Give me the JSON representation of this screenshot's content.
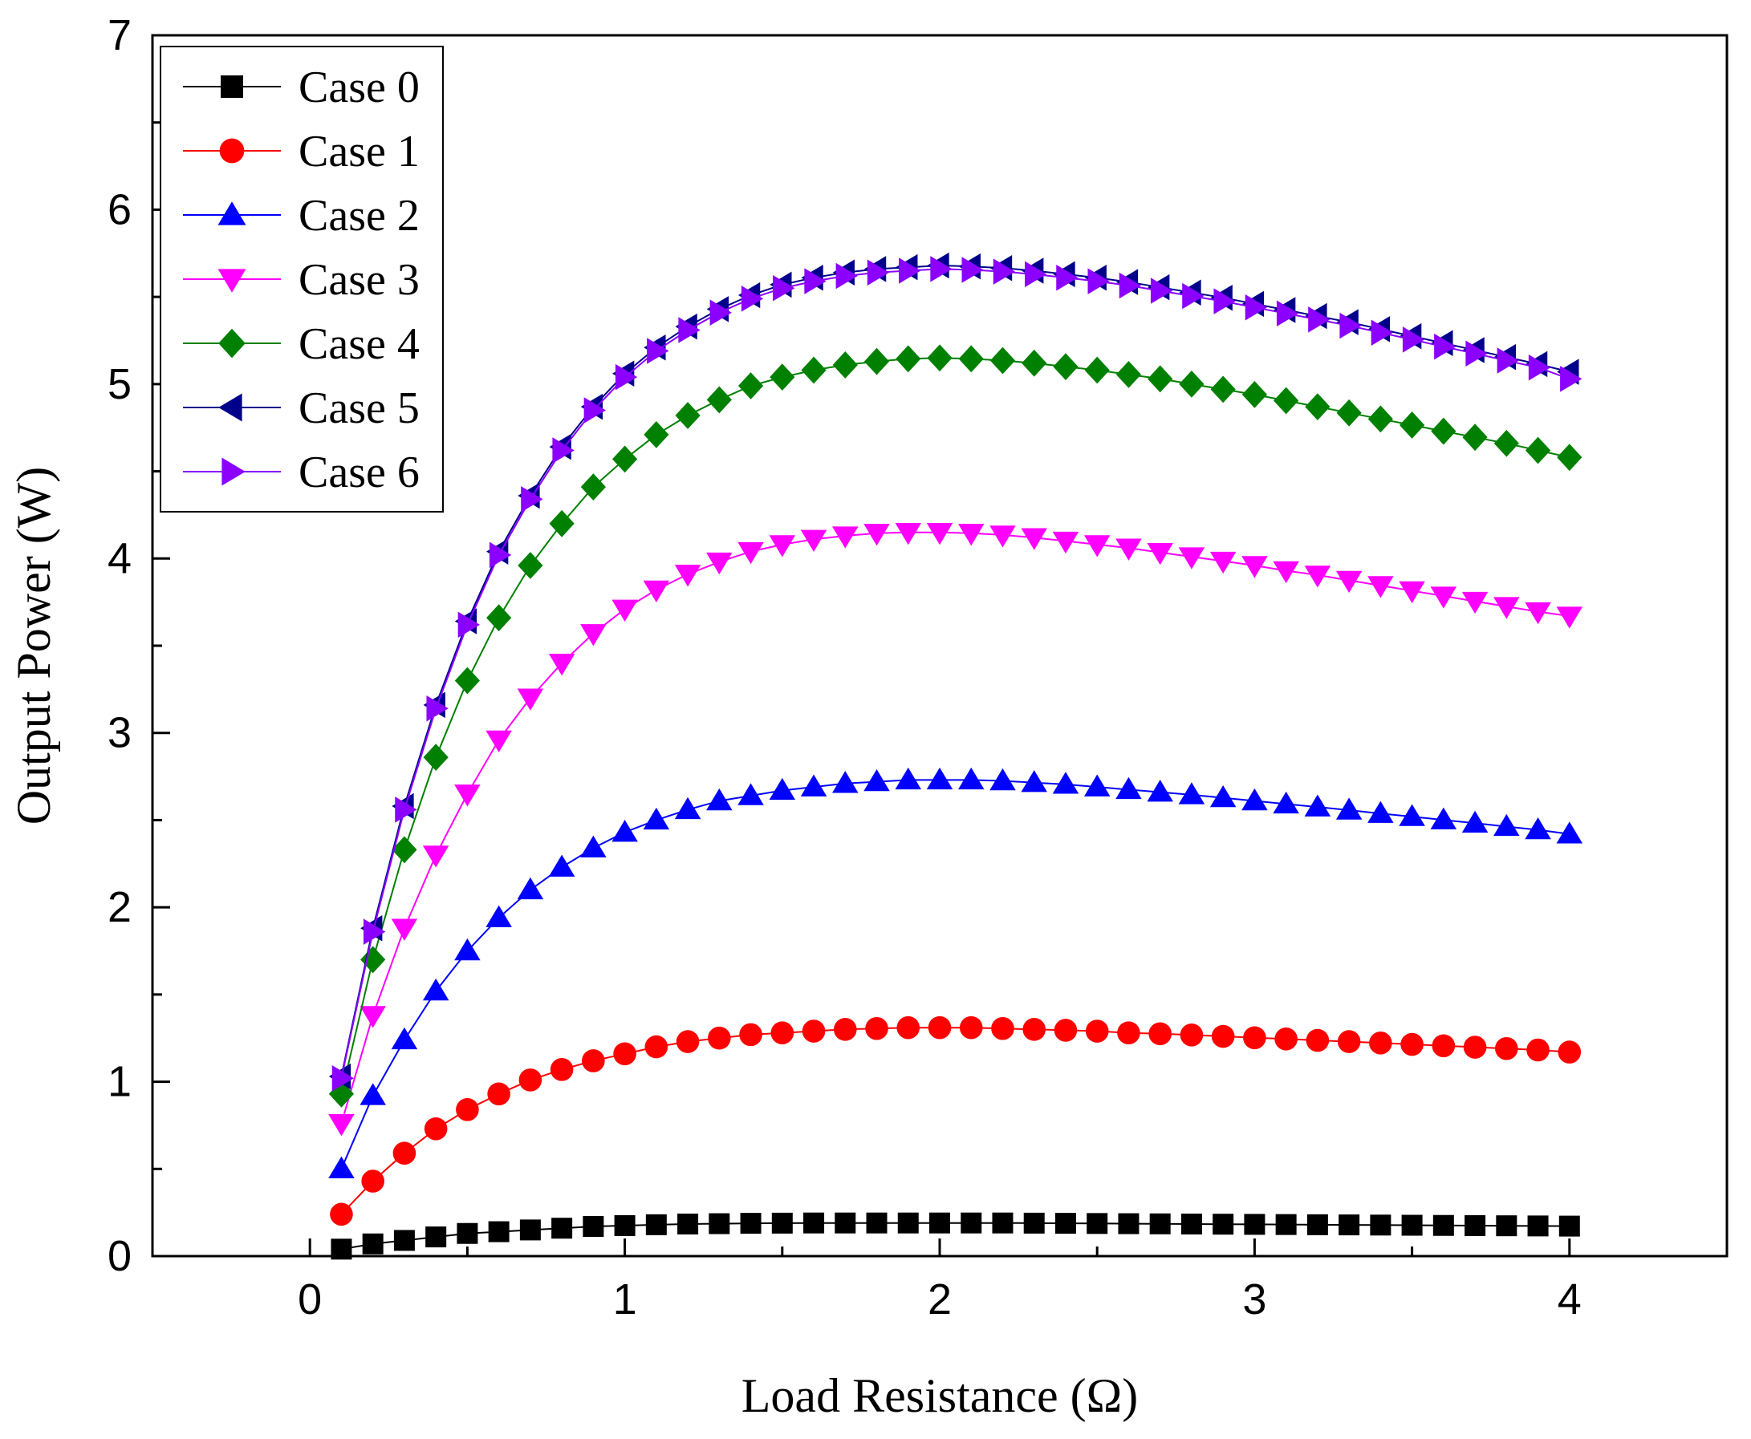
{
  "chart_data": {
    "type": "line",
    "title": "",
    "xlabel": "Load Resistance (Ω)",
    "ylabel": "Output Power (W)",
    "xlim": [
      -0.5,
      4.5
    ],
    "ylim": [
      0,
      7
    ],
    "xticks": [
      0,
      1,
      2,
      3,
      4
    ],
    "yticks": [
      0,
      1,
      2,
      3,
      4,
      5,
      6,
      7
    ],
    "legend_position": "top-left",
    "x": [
      0.1,
      0.2,
      0.3,
      0.4,
      0.5,
      0.6,
      0.7,
      0.8,
      0.9,
      1.0,
      1.1,
      1.2,
      1.3,
      1.4,
      1.5,
      1.6,
      1.7,
      1.8,
      1.9,
      2.0,
      2.1,
      2.2,
      2.3,
      2.4,
      2.5,
      2.6,
      2.7,
      2.8,
      2.9,
      3.0,
      3.1,
      3.2,
      3.3,
      3.4,
      3.5,
      3.6,
      3.7,
      3.8,
      3.9,
      4.0
    ],
    "series": [
      {
        "name": "Case 0",
        "color": "#000000",
        "marker": "square",
        "values": [
          0.04,
          0.07,
          0.09,
          0.11,
          0.13,
          0.14,
          0.15,
          0.16,
          0.17,
          0.175,
          0.18,
          0.184,
          0.186,
          0.188,
          0.189,
          0.19,
          0.19,
          0.19,
          0.19,
          0.19,
          0.19,
          0.19,
          0.189,
          0.188,
          0.187,
          0.186,
          0.185,
          0.184,
          0.183,
          0.182,
          0.181,
          0.18,
          0.179,
          0.178,
          0.177,
          0.176,
          0.175,
          0.174,
          0.173,
          0.172
        ]
      },
      {
        "name": "Case 1",
        "color": "#ff0000",
        "marker": "circle",
        "values": [
          0.24,
          0.43,
          0.59,
          0.73,
          0.84,
          0.93,
          1.01,
          1.07,
          1.12,
          1.16,
          1.2,
          1.23,
          1.25,
          1.27,
          1.28,
          1.29,
          1.3,
          1.305,
          1.31,
          1.31,
          1.31,
          1.305,
          1.3,
          1.295,
          1.29,
          1.28,
          1.275,
          1.268,
          1.26,
          1.252,
          1.245,
          1.237,
          1.23,
          1.222,
          1.214,
          1.206,
          1.198,
          1.19,
          1.182,
          1.17
        ]
      },
      {
        "name": "Case 2",
        "color": "#0000ff",
        "marker": "triangle-up",
        "values": [
          0.5,
          0.92,
          1.24,
          1.52,
          1.75,
          1.94,
          2.1,
          2.23,
          2.34,
          2.43,
          2.5,
          2.56,
          2.61,
          2.64,
          2.67,
          2.69,
          2.71,
          2.72,
          2.73,
          2.73,
          2.73,
          2.725,
          2.715,
          2.705,
          2.69,
          2.675,
          2.66,
          2.645,
          2.628,
          2.61,
          2.592,
          2.575,
          2.557,
          2.538,
          2.52,
          2.501,
          2.482,
          2.463,
          2.444,
          2.42
        ]
      },
      {
        "name": "Case 3",
        "color": "#ff00ff",
        "marker": "triangle-down",
        "values": [
          0.76,
          1.38,
          1.88,
          2.3,
          2.65,
          2.96,
          3.2,
          3.4,
          3.57,
          3.71,
          3.82,
          3.91,
          3.98,
          4.04,
          4.08,
          4.11,
          4.13,
          4.145,
          4.15,
          4.15,
          4.145,
          4.135,
          4.12,
          4.1,
          4.08,
          4.06,
          4.035,
          4.01,
          3.985,
          3.96,
          3.93,
          3.905,
          3.875,
          3.845,
          3.815,
          3.785,
          3.755,
          3.725,
          3.695,
          3.67
        ]
      },
      {
        "name": "Case 4",
        "color": "#008000",
        "marker": "diamond",
        "values": [
          0.93,
          1.7,
          2.33,
          2.86,
          3.3,
          3.66,
          3.96,
          4.2,
          4.41,
          4.57,
          4.71,
          4.82,
          4.91,
          4.99,
          5.04,
          5.08,
          5.11,
          5.13,
          5.145,
          5.15,
          5.145,
          5.135,
          5.12,
          5.1,
          5.08,
          5.055,
          5.03,
          5.0,
          4.97,
          4.94,
          4.905,
          4.87,
          4.835,
          4.8,
          4.765,
          4.73,
          4.695,
          4.66,
          4.62,
          4.58
        ]
      },
      {
        "name": "Case 5",
        "color": "#00008b",
        "marker": "triangle-left",
        "values": [
          1.03,
          1.88,
          2.58,
          3.16,
          3.64,
          4.04,
          4.36,
          4.64,
          4.87,
          5.06,
          5.21,
          5.33,
          5.43,
          5.51,
          5.57,
          5.61,
          5.64,
          5.66,
          5.67,
          5.68,
          5.675,
          5.665,
          5.65,
          5.63,
          5.61,
          5.585,
          5.555,
          5.525,
          5.495,
          5.46,
          5.425,
          5.39,
          5.355,
          5.315,
          5.275,
          5.235,
          5.195,
          5.155,
          5.115,
          5.07
        ]
      },
      {
        "name": "Case 6",
        "color": "#8b00ff",
        "marker": "triangle-right",
        "values": [
          1.02,
          1.86,
          2.56,
          3.14,
          3.62,
          4.02,
          4.34,
          4.62,
          4.85,
          5.04,
          5.19,
          5.31,
          5.41,
          5.49,
          5.55,
          5.59,
          5.62,
          5.64,
          5.65,
          5.66,
          5.655,
          5.645,
          5.63,
          5.61,
          5.59,
          5.565,
          5.535,
          5.505,
          5.475,
          5.44,
          5.405,
          5.37,
          5.335,
          5.295,
          5.255,
          5.215,
          5.175,
          5.135,
          5.095,
          5.03
        ]
      }
    ]
  }
}
